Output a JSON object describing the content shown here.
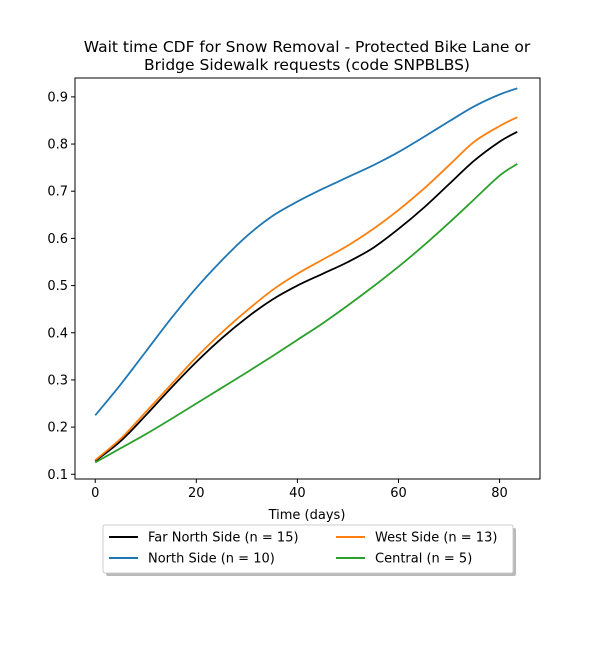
{
  "chart_data": {
    "type": "line",
    "title_line1": "Wait time CDF for Snow Removal - Protected Bike Lane or",
    "title_line2": "Bridge Sidewalk  requests (code SNPBLBS)",
    "xlabel": "Time (days)",
    "ylabel": "",
    "xlim": [
      -4,
      88
    ],
    "ylim": [
      0.09,
      0.94
    ],
    "xticks": [
      0,
      20,
      40,
      60,
      80
    ],
    "xtick_labels": [
      "0",
      "20",
      "40",
      "60",
      "80"
    ],
    "yticks": [
      0.1,
      0.2,
      0.3,
      0.4,
      0.5,
      0.6,
      0.7,
      0.8,
      0.9
    ],
    "ytick_labels": [
      "0.1",
      "0.2",
      "0.3",
      "0.4",
      "0.5",
      "0.6",
      "0.7",
      "0.8",
      "0.9"
    ],
    "grid": false,
    "legend_position": "bottom-center, two columns",
    "series": [
      {
        "name": "Far North Side (n = 15)",
        "color": "#000000",
        "x": [
          0,
          5,
          10,
          15,
          20,
          25,
          30,
          35,
          40,
          45,
          50,
          55,
          60,
          65,
          70,
          75,
          80,
          83.5
        ],
        "y": [
          0.128,
          0.17,
          0.225,
          0.283,
          0.338,
          0.388,
          0.432,
          0.47,
          0.5,
          0.525,
          0.55,
          0.58,
          0.62,
          0.665,
          0.715,
          0.765,
          0.805,
          0.826
        ]
      },
      {
        "name": "West Side (n = 13)",
        "color": "#ff7f0e",
        "x": [
          0,
          5,
          10,
          15,
          20,
          25,
          30,
          35,
          40,
          45,
          50,
          55,
          60,
          65,
          70,
          75,
          80,
          83.5
        ],
        "y": [
          0.13,
          0.175,
          0.232,
          0.29,
          0.348,
          0.4,
          0.447,
          0.49,
          0.525,
          0.555,
          0.585,
          0.62,
          0.66,
          0.705,
          0.755,
          0.805,
          0.838,
          0.857
        ]
      },
      {
        "name": "North Side (n = 10)",
        "color": "#1f77b4",
        "x": [
          0,
          5,
          10,
          15,
          20,
          25,
          30,
          35,
          40,
          45,
          50,
          55,
          60,
          65,
          70,
          75,
          80,
          83.5
        ],
        "y": [
          0.225,
          0.29,
          0.36,
          0.43,
          0.495,
          0.553,
          0.605,
          0.647,
          0.678,
          0.705,
          0.73,
          0.755,
          0.783,
          0.815,
          0.848,
          0.88,
          0.905,
          0.918
        ]
      },
      {
        "name": "Central (n = 5)",
        "color": "#2ca02c",
        "x": [
          0,
          5,
          10,
          15,
          20,
          25,
          30,
          35,
          40,
          45,
          50,
          55,
          60,
          65,
          70,
          75,
          80,
          83.5
        ],
        "y": [
          0.125,
          0.155,
          0.185,
          0.217,
          0.25,
          0.283,
          0.316,
          0.35,
          0.385,
          0.42,
          0.458,
          0.498,
          0.54,
          0.585,
          0.633,
          0.683,
          0.733,
          0.758
        ]
      }
    ],
    "legend_order": [
      "Far North Side (n = 15)",
      "North Side (n = 10)",
      "West Side (n = 13)",
      "Central (n = 5)"
    ]
  }
}
